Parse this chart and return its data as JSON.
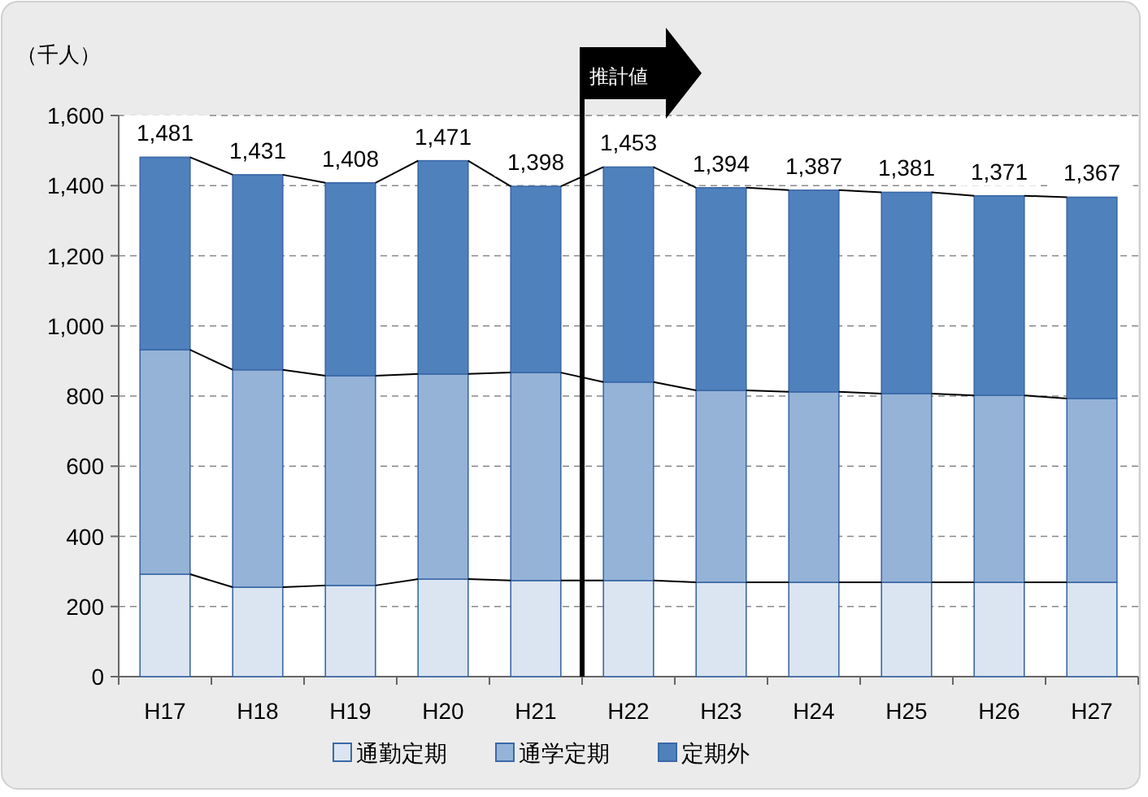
{
  "chart_data": {
    "type": "bar",
    "stacked": true,
    "ylabel": "（千人）",
    "categories": [
      "H17",
      "H18",
      "H19",
      "H20",
      "H21",
      "H22",
      "H23",
      "H24",
      "H25",
      "H26",
      "H27"
    ],
    "series": [
      {
        "name": "通勤定期",
        "color": "#dbe5f1",
        "values": [
          292,
          255,
          260,
          278,
          274,
          274,
          269,
          269,
          269,
          269,
          269
        ]
      },
      {
        "name": "通学定期",
        "color": "#95b3d7",
        "values": [
          640,
          620,
          598,
          585,
          593,
          566,
          547,
          543,
          538,
          533,
          524
        ]
      },
      {
        "name": "定期外",
        "color": "#4f81bd",
        "values": [
          549,
          556,
          550,
          608,
          531,
          613,
          578,
          575,
          574,
          569,
          574
        ]
      }
    ],
    "totals": [
      "1,481",
      "1,431",
      "1,408",
      "1,471",
      "1,398",
      "1,453",
      "1,394",
      "1,387",
      "1,381",
      "1,371",
      "1,367"
    ],
    "ylim": [
      0,
      1600
    ],
    "yticks": [
      {
        "value": 0,
        "label": "0"
      },
      {
        "value": 200,
        "label": "200"
      },
      {
        "value": 400,
        "label": "400"
      },
      {
        "value": 600,
        "label": "600"
      },
      {
        "value": 800,
        "label": "800"
      },
      {
        "value": 1000,
        "label": "1,000"
      },
      {
        "value": 1200,
        "label": "1,200"
      },
      {
        "value": 1400,
        "label": "1,400"
      },
      {
        "value": 1600,
        "label": "1,600"
      }
    ],
    "grid": "y",
    "legend": "bottom",
    "annotations": [
      "推計値"
    ]
  }
}
